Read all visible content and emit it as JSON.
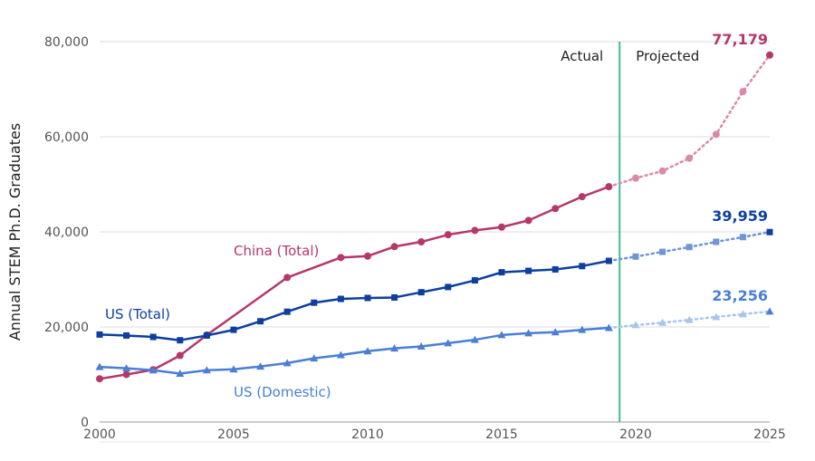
{
  "chart_data": {
    "type": "line",
    "title": "",
    "xlabel": "",
    "ylabel": "Annual STEM Ph.D. Graduates",
    "x_ticks": [
      "2000",
      "2005",
      "2010",
      "2015",
      "2020",
      "2025"
    ],
    "y_ticks": [
      "0",
      "20,000",
      "40,000",
      "60,000",
      "80,000"
    ],
    "xlim": [
      2000,
      2025
    ],
    "ylim": [
      0,
      80000
    ],
    "grid": "horizontal",
    "divider_year": 2019.4,
    "region_labels": {
      "actual": "Actual",
      "projected": "Projected"
    },
    "series": [
      {
        "name": "China (Total)",
        "color": "#b5386a",
        "projected_color": "#d98aa8",
        "marker": "circle",
        "label_position": "middle",
        "actual": [
          [
            2000,
            9100
          ],
          [
            2001,
            10000
          ],
          [
            2002,
            11000
          ],
          [
            2003,
            14000
          ],
          [
            2004,
            18300
          ],
          [
            2007,
            30400
          ],
          [
            2009,
            34600
          ],
          [
            2010,
            34900
          ],
          [
            2011,
            36900
          ],
          [
            2012,
            37900
          ],
          [
            2013,
            39400
          ],
          [
            2014,
            40300
          ],
          [
            2015,
            41000
          ],
          [
            2016,
            42400
          ],
          [
            2017,
            44900
          ],
          [
            2018,
            47400
          ],
          [
            2019,
            49500
          ]
        ],
        "projected": [
          [
            2019,
            49500
          ],
          [
            2020,
            51300
          ],
          [
            2021,
            52800
          ],
          [
            2022,
            55500
          ],
          [
            2023,
            60500
          ],
          [
            2024,
            69500
          ],
          [
            2025,
            77179
          ]
        ],
        "end_value_label": "77,179"
      },
      {
        "name": "US (Total)",
        "color": "#0d3fa0",
        "projected_color": "#6f95d4",
        "marker": "square",
        "label_position": "left",
        "actual": [
          [
            2000,
            18400
          ],
          [
            2001,
            18200
          ],
          [
            2002,
            17900
          ],
          [
            2003,
            17200
          ],
          [
            2004,
            18200
          ],
          [
            2005,
            19400
          ],
          [
            2006,
            21200
          ],
          [
            2007,
            23200
          ],
          [
            2008,
            25100
          ],
          [
            2009,
            25900
          ],
          [
            2010,
            26100
          ],
          [
            2011,
            26200
          ],
          [
            2012,
            27300
          ],
          [
            2013,
            28400
          ],
          [
            2014,
            29800
          ],
          [
            2015,
            31500
          ],
          [
            2016,
            31800
          ],
          [
            2017,
            32100
          ],
          [
            2018,
            32800
          ],
          [
            2019,
            33900
          ]
        ],
        "projected": [
          [
            2019,
            33900
          ],
          [
            2020,
            34800
          ],
          [
            2021,
            35800
          ],
          [
            2022,
            36800
          ],
          [
            2023,
            37900
          ],
          [
            2024,
            38900
          ],
          [
            2025,
            39959
          ]
        ],
        "end_value_label": "39,959"
      },
      {
        "name": "US (Domestic)",
        "color": "#4a7fd6",
        "projected_color": "#a9c4ee",
        "marker": "triangle",
        "label_position": "bottom",
        "actual": [
          [
            2000,
            11600
          ],
          [
            2001,
            11300
          ],
          [
            2002,
            10900
          ],
          [
            2003,
            10200
          ],
          [
            2004,
            10900
          ],
          [
            2005,
            11100
          ],
          [
            2006,
            11700
          ],
          [
            2007,
            12400
          ],
          [
            2008,
            13400
          ],
          [
            2009,
            14100
          ],
          [
            2010,
            14900
          ],
          [
            2011,
            15500
          ],
          [
            2012,
            15900
          ],
          [
            2013,
            16600
          ],
          [
            2014,
            17300
          ],
          [
            2015,
            18300
          ],
          [
            2016,
            18700
          ],
          [
            2017,
            18900
          ],
          [
            2018,
            19400
          ],
          [
            2019,
            19800
          ]
        ],
        "projected": [
          [
            2019,
            19800
          ],
          [
            2020,
            20400
          ],
          [
            2021,
            20900
          ],
          [
            2022,
            21500
          ],
          [
            2023,
            22100
          ],
          [
            2024,
            22700
          ],
          [
            2025,
            23256
          ]
        ],
        "end_value_label": "23,256"
      }
    ]
  }
}
